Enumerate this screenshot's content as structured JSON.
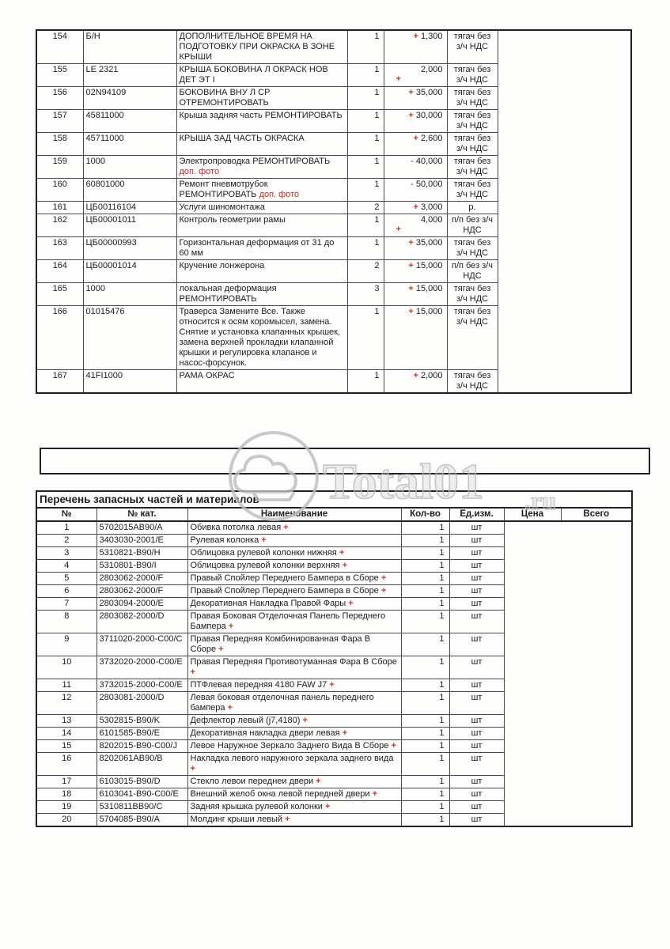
{
  "watermark": {
    "text": "Total01",
    "suffix": ".ru"
  },
  "colors": {
    "plus_sign": "#c0392b",
    "red_note": "#cc2a2a",
    "watermark_gray": "#bdbdbd"
  },
  "works_table": {
    "rows": [
      {
        "num": "154",
        "cat": "Б/Н",
        "name": "ДОПОЛНИТЕЛЬНОЕ ВРЕМЯ НА ПОДГОТОВКУ ПРИ ОКРАСКА В ЗОНЕ КРЫШИ",
        "note": "",
        "qty": "1",
        "sign": "+",
        "sign_style": "red",
        "sign_below": false,
        "price": "1,300",
        "unit": "тягач без з/ч НДС"
      },
      {
        "num": "155",
        "cat": "LE 2321",
        "name": "КРЫША БОКОВИНА Л ОКРАСК НОВ ДЕТ ЭТ I",
        "note": "",
        "qty": "1",
        "sign": "+",
        "sign_style": "red",
        "sign_below": true,
        "price": "2,000",
        "unit": "тягач без з/ч НДС"
      },
      {
        "num": "156",
        "cat": "02N94109",
        "name": "БОКОВИНА ВНУ Л СР ОТРЕМОНТИРОВАТЬ",
        "note": "",
        "qty": "1",
        "sign": "+",
        "sign_style": "red",
        "sign_below": false,
        "price": "35,000",
        "unit": "тягач без з/ч НДС"
      },
      {
        "num": "157",
        "cat": "45811000",
        "name": "Крыша задняя часть РЕМОНТИРОВАТЬ",
        "note": "",
        "qty": "1",
        "sign": "+",
        "sign_style": "red",
        "sign_below": false,
        "price": "30,000",
        "unit": "тягач без з/ч НДС"
      },
      {
        "num": "158",
        "cat": "45711000",
        "name": "КРЫША ЗАД ЧАСТЬ ОКРАСКА",
        "note": "",
        "qty": "1",
        "sign": "+",
        "sign_style": "red",
        "sign_below": false,
        "price": "2,600",
        "unit": "тягач без з/ч НДС"
      },
      {
        "num": "159",
        "cat": "1000",
        "name": "Электропроводка РЕМОНТИРОВАТЬ",
        "note": "доп. фото",
        "qty": "1",
        "sign": "-",
        "sign_style": "dark",
        "sign_below": false,
        "price": "40,000",
        "unit": "тягач без з/ч НДС"
      },
      {
        "num": "160",
        "cat": "60801000",
        "name": "Ремонт пневмотрубок РЕМОНТИРОВАТЬ",
        "note": "доп. фото",
        "qty": "1",
        "sign": "-",
        "sign_style": "dark",
        "sign_below": false,
        "price": "50,000",
        "unit": "тягач без з/ч НДС"
      },
      {
        "num": "161",
        "cat": "ЦБ00116104",
        "name": "Услуги шиномонтажа",
        "note": "",
        "qty": "2",
        "sign": "+",
        "sign_style": "red",
        "sign_below": false,
        "price": "3,000",
        "unit": "р."
      },
      {
        "num": "162",
        "cat": "ЦБ00001011",
        "name": "Контроль геометрии рамы",
        "note": "",
        "qty": "1",
        "sign": "+",
        "sign_style": "red",
        "sign_below": true,
        "price": "4,000",
        "unit": "п/п без з/ч НДС"
      },
      {
        "num": "163",
        "cat": "ЦБ00000993",
        "name": "Горизонтальная деформация от 31 до 60 мм",
        "note": "",
        "qty": "1",
        "sign": "+",
        "sign_style": "red",
        "sign_below": false,
        "price": "35,000",
        "unit": "тягач без з/ч НДС"
      },
      {
        "num": "164",
        "cat": "ЦБ00001014",
        "name": "Кручение лонжерона",
        "note": "",
        "qty": "2",
        "sign": "+",
        "sign_style": "red",
        "sign_below": false,
        "price": "15,000",
        "unit": "п/п без з/ч НДС"
      },
      {
        "num": "165",
        "cat": "1000",
        "name": "локальная деформация РЕМОНТИРОВАТЬ",
        "note": "",
        "qty": "3",
        "sign": "+",
        "sign_style": "red",
        "sign_below": false,
        "price": "15,000",
        "unit": "тягач без з/ч НДС"
      },
      {
        "num": "166",
        "cat": "01015476",
        "name": "Траверса Замените Все. Также относится к осям коромысел, замена.  Снятие и установка клапанных крышек, замена верхней прокладки клапанной крышки и регулировка клапанов и насос-форсунок.",
        "note": "",
        "qty": "1",
        "sign": "+",
        "sign_style": "red",
        "sign_below": false,
        "price": "15,000",
        "unit": "тягач без з/ч НДС"
      },
      {
        "num": "167",
        "cat": "41FI1000",
        "name": "РАМА ОКРАС",
        "note": "",
        "qty": "1",
        "sign": "+",
        "sign_style": "red",
        "sign_below": false,
        "price": "2,000",
        "unit": "тягач без з/ч НДС"
      }
    ]
  },
  "parts_table": {
    "title": "Перечень запасных частей и материалов",
    "headers": {
      "num": "№",
      "cat": "№ кат.",
      "name": "Наименование",
      "qty": "Кол-во",
      "unit": "Ед.изм.",
      "price": "Цена",
      "total": "Всего"
    },
    "rows": [
      {
        "num": "1",
        "cat": "5702015AB90/A",
        "name": "Обивка потолка левая",
        "qty": "1",
        "unit": "шт"
      },
      {
        "num": "2",
        "cat": "3403030-2001/E",
        "name": "Рулевая колонка",
        "qty": "1",
        "unit": "шт"
      },
      {
        "num": "3",
        "cat": "5310821-B90/H",
        "name": "Облицовка рулевой колонки нижняя",
        "qty": "1",
        "unit": "шт"
      },
      {
        "num": "4",
        "cat": "5310801-B90/I",
        "name": "Облицовка рулевой колонки верхняя",
        "qty": "1",
        "unit": "шт"
      },
      {
        "num": "5",
        "cat": "2803062-2000/F",
        "name": "Правый Спойлер Переднего Бампера в Сборе",
        "qty": "1",
        "unit": "шт"
      },
      {
        "num": "6",
        "cat": "2803062-2000/F",
        "name": "Правый Спойлер Переднего Бампера в Сборе",
        "qty": "1",
        "unit": "шт"
      },
      {
        "num": "7",
        "cat": "2803094-2000/E",
        "name": "Декоративная Накладка Правой Фары",
        "qty": "1",
        "unit": "шт"
      },
      {
        "num": "8",
        "cat": "2803082-2000/D",
        "name": "Правая Боковая Отделочная Панель Переднего Бампера",
        "qty": "1",
        "unit": "шт"
      },
      {
        "num": "9",
        "cat": "3711020-2000-C00/C",
        "name": "Правая Передняя Комбинированная Фара В Сборе",
        "qty": "1",
        "unit": "шт"
      },
      {
        "num": "10",
        "cat": "3732020-2000-C00/E",
        "name": "Правая Передняя Противотуманная Фара В Сборе",
        "qty": "1",
        "unit": "шт"
      },
      {
        "num": "11",
        "cat": "3732015-2000-C00/E",
        "name": "ПТФлевая передняя 4180 FAW J7",
        "qty": "1",
        "unit": "шт"
      },
      {
        "num": "12",
        "cat": "2803081-2000/D",
        "name": "Левая боковая отделочная панель переднего бампера",
        "qty": "1",
        "unit": "шт"
      },
      {
        "num": "13",
        "cat": "5302815-B90/K",
        "name": "Дефлектор левый (j7,4180)",
        "qty": "1",
        "unit": "шт"
      },
      {
        "num": "14",
        "cat": "6101585-B90/E",
        "name": "Декоративная накладка двери левая",
        "qty": "1",
        "unit": "шт"
      },
      {
        "num": "15",
        "cat": "8202015-B90-C00/J",
        "name": "Левое Наружное Зеркало Заднего Вида В Сборе",
        "qty": "1",
        "unit": "шт"
      },
      {
        "num": "16",
        "cat": "8202061AB90/B",
        "name": "Накладка левого наружного зеркала заднего вида",
        "qty": "1",
        "unit": "шт"
      },
      {
        "num": "17",
        "cat": "6103015-B90/D",
        "name": "Стекло левои переднеи двери",
        "qty": "1",
        "unit": "шт"
      },
      {
        "num": "18",
        "cat": "6103041-B90-C00/E",
        "name": "Внешний желоб окна левой передней двери",
        "qty": "1",
        "unit": "шт"
      },
      {
        "num": "19",
        "cat": "5310811BB90/C",
        "name": "Задняя крышка рулевой колонки",
        "qty": "1",
        "unit": "шт"
      },
      {
        "num": "20",
        "cat": "5704085-B90/A",
        "name": "Молдинг крыши левый",
        "qty": "1",
        "unit": "шт"
      }
    ]
  }
}
